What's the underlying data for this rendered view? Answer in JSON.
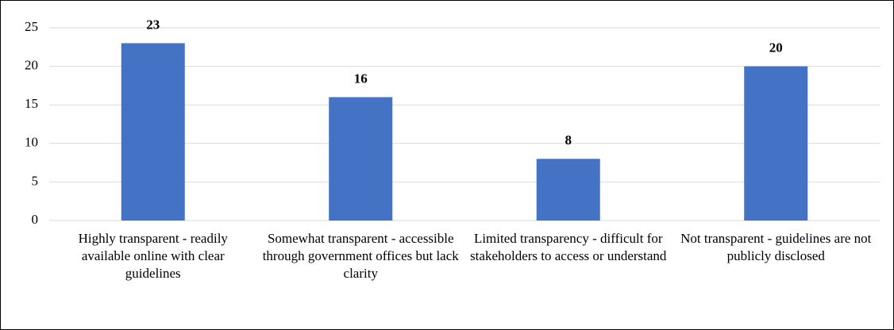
{
  "chart_data": {
    "type": "bar",
    "categories": [
      "Highly transparent - readily available online with clear guidelines",
      "Somewhat transparent - accessible through government offices but lack clarity",
      "Limited transparency - difficult for stakeholders to access or understand",
      "Not transparent - guidelines are not publicly disclosed"
    ],
    "values": [
      23,
      16,
      8,
      20
    ],
    "color": "#4472c4",
    "ylim": [
      0,
      25
    ],
    "yticks": [
      0,
      5,
      10,
      15,
      20,
      25
    ],
    "grid": true
  }
}
